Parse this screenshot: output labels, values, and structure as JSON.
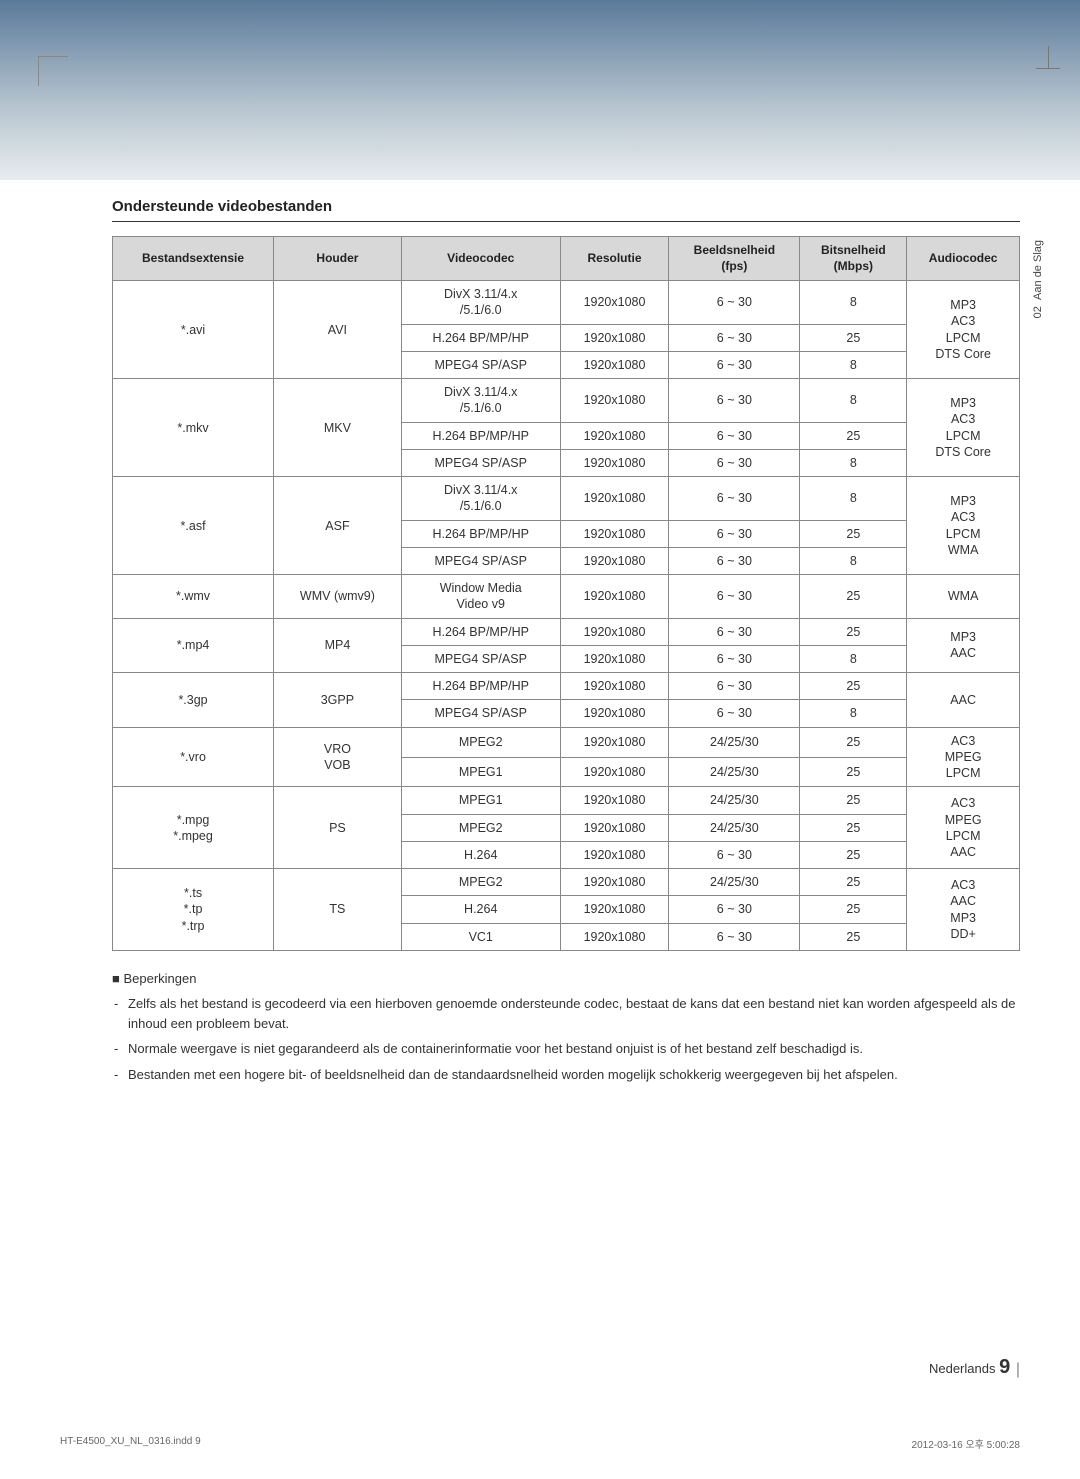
{
  "section_title": "Ondersteunde videobestanden",
  "side_tab": {
    "num": "02",
    "label": "Aan de Slag"
  },
  "table": {
    "headers": [
      "Bestandsextensie",
      "Houder",
      "Videocodec",
      "Resolutie",
      "Beeldsnelheid\n(fps)",
      "Bitsnelheid\n(Mbps)",
      "Audiocodec"
    ],
    "groups": [
      {
        "ext": "*.avi",
        "container": "AVI",
        "rows": [
          {
            "codec": "DivX 3.11/4.x\n/5.1/6.0",
            "res": "1920x1080",
            "fps": "6 ~ 30",
            "mbps": "8"
          },
          {
            "codec": "H.264 BP/MP/HP",
            "res": "1920x1080",
            "fps": "6 ~ 30",
            "mbps": "25"
          },
          {
            "codec": "MPEG4 SP/ASP",
            "res": "1920x1080",
            "fps": "6 ~ 30",
            "mbps": "8"
          }
        ],
        "audio": "MP3\nAC3\nLPCM\nDTS Core"
      },
      {
        "ext": "*.mkv",
        "container": "MKV",
        "rows": [
          {
            "codec": "DivX 3.11/4.x\n/5.1/6.0",
            "res": "1920x1080",
            "fps": "6 ~ 30",
            "mbps": "8"
          },
          {
            "codec": "H.264 BP/MP/HP",
            "res": "1920x1080",
            "fps": "6 ~ 30",
            "mbps": "25"
          },
          {
            "codec": "MPEG4 SP/ASP",
            "res": "1920x1080",
            "fps": "6 ~ 30",
            "mbps": "8"
          }
        ],
        "audio": "MP3\nAC3\nLPCM\nDTS Core"
      },
      {
        "ext": "*.asf",
        "container": "ASF",
        "rows": [
          {
            "codec": "DivX 3.11/4.x\n/5.1/6.0",
            "res": "1920x1080",
            "fps": "6 ~ 30",
            "mbps": "8"
          },
          {
            "codec": "H.264 BP/MP/HP",
            "res": "1920x1080",
            "fps": "6 ~ 30",
            "mbps": "25"
          },
          {
            "codec": "MPEG4 SP/ASP",
            "res": "1920x1080",
            "fps": "6 ~ 30",
            "mbps": "8"
          }
        ],
        "audio": "MP3\nAC3\nLPCM\nWMA"
      },
      {
        "ext": "*.wmv",
        "container": "WMV (wmv9)",
        "rows": [
          {
            "codec": "Window Media\nVideo v9",
            "res": "1920x1080",
            "fps": "6 ~ 30",
            "mbps": "25"
          }
        ],
        "audio": "WMA"
      },
      {
        "ext": "*.mp4",
        "container": "MP4",
        "rows": [
          {
            "codec": "H.264 BP/MP/HP",
            "res": "1920x1080",
            "fps": "6 ~ 30",
            "mbps": "25"
          },
          {
            "codec": "MPEG4 SP/ASP",
            "res": "1920x1080",
            "fps": "6 ~ 30",
            "mbps": "8"
          }
        ],
        "audio": "MP3\nAAC"
      },
      {
        "ext": "*.3gp",
        "container": "3GPP",
        "rows": [
          {
            "codec": "H.264 BP/MP/HP",
            "res": "1920x1080",
            "fps": "6 ~ 30",
            "mbps": "25"
          },
          {
            "codec": "MPEG4 SP/ASP",
            "res": "1920x1080",
            "fps": "6 ~ 30",
            "mbps": "8"
          }
        ],
        "audio": "AAC"
      },
      {
        "ext": "*.vro",
        "container": "VRO\nVOB",
        "rows": [
          {
            "codec": "MPEG2",
            "res": "1920x1080",
            "fps": "24/25/30",
            "mbps": "25"
          },
          {
            "codec": "MPEG1",
            "res": "1920x1080",
            "fps": "24/25/30",
            "mbps": "25"
          }
        ],
        "audio": "AC3\nMPEG\nLPCM"
      },
      {
        "ext": "*.mpg\n*.mpeg",
        "container": "PS",
        "rows": [
          {
            "codec": "MPEG1",
            "res": "1920x1080",
            "fps": "24/25/30",
            "mbps": "25"
          },
          {
            "codec": "MPEG2",
            "res": "1920x1080",
            "fps": "24/25/30",
            "mbps": "25"
          },
          {
            "codec": "H.264",
            "res": "1920x1080",
            "fps": "6 ~ 30",
            "mbps": "25"
          }
        ],
        "audio": "AC3\nMPEG\nLPCM\nAAC"
      },
      {
        "ext": "*.ts\n*.tp\n*.trp",
        "container": "TS",
        "rows": [
          {
            "codec": "MPEG2",
            "res": "1920x1080",
            "fps": "24/25/30",
            "mbps": "25"
          },
          {
            "codec": "H.264",
            "res": "1920x1080",
            "fps": "6 ~ 30",
            "mbps": "25"
          },
          {
            "codec": "VC1",
            "res": "1920x1080",
            "fps": "6 ~ 30",
            "mbps": "25"
          }
        ],
        "audio": "AC3\nAAC\nMP3\nDD+"
      }
    ]
  },
  "notes": {
    "heading": "Beperkingen",
    "items": [
      "Zelfs als het bestand is gecodeerd via een hierboven genoemde ondersteunde codec, bestaat de kans dat een bestand niet kan worden afgespeeld als de inhoud een probleem bevat.",
      "Normale weergave is niet gegarandeerd als de containerinformatie voor het bestand onjuist is of het bestand zelf beschadigd is.",
      "Bestanden met een hogere bit- of beeldsnelheid dan de standaardsnelheid worden mogelijk schokkerig weergegeven bij het afspelen."
    ]
  },
  "footer": {
    "lang": "Nederlands",
    "page": "9"
  },
  "print": {
    "left": "HT-E4500_XU_NL_0316.indd   9",
    "right": "2012-03-16   오후 5:00:28"
  }
}
